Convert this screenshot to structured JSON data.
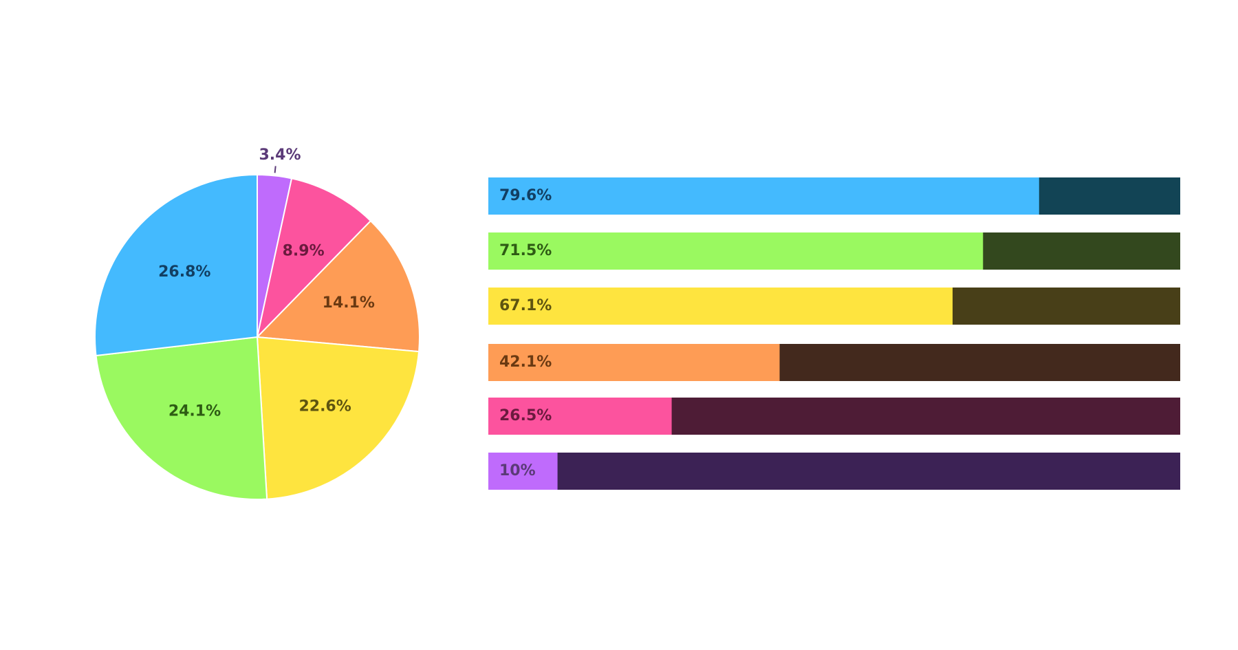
{
  "chart_data": [
    {
      "type": "pie",
      "slices": [
        {
          "label": "3.4%",
          "value": 3.4,
          "color": "#BF6BFC",
          "text_color": "#5B3A78"
        },
        {
          "label": "8.9%",
          "value": 8.9,
          "color": "#FC539E",
          "text_color": "#6B1A3E"
        },
        {
          "label": "14.1%",
          "value": 14.1,
          "color": "#FE9C55",
          "text_color": "#6B3A12"
        },
        {
          "label": "22.6%",
          "value": 22.6,
          "color": "#FEE43F",
          "text_color": "#5E5410"
        },
        {
          "label": "24.1%",
          "value": 24.1,
          "color": "#9AF960",
          "text_color": "#2E5C14"
        },
        {
          "label": "26.8%",
          "value": 26.8,
          "color": "#44BAFE",
          "text_color": "#123F63"
        }
      ],
      "start_angle_deg": 0,
      "direction": "clockwise",
      "slice_border_color": "#FFFFFF"
    },
    {
      "type": "bar",
      "orientation": "horizontal",
      "stacked_to_100": true,
      "bars": [
        {
          "label": "79.6%",
          "value": 79.6,
          "color": "#44BAFE",
          "track_color": "#124455",
          "text_color": "#123F63"
        },
        {
          "label": "71.5%",
          "value": 71.5,
          "color": "#9AF960",
          "track_color": "#33481E",
          "text_color": "#2E5C14"
        },
        {
          "label": "67.1%",
          "value": 67.1,
          "color": "#FEE43F",
          "track_color": "#483F18",
          "text_color": "#5E5410"
        },
        {
          "label": "42.1%",
          "value": 42.1,
          "color": "#FE9C55",
          "track_color": "#43291D",
          "text_color": "#6B3A12"
        },
        {
          "label": "26.5%",
          "value": 26.5,
          "color": "#FC539E",
          "track_color": "#4E1C36",
          "text_color": "#6B1A3E"
        },
        {
          "label": "10%",
          "value": 10,
          "color": "#BF6BFC",
          "track_color": "#3C2255",
          "text_color": "#5B3A78"
        }
      ],
      "xlim": [
        0,
        100
      ]
    }
  ]
}
